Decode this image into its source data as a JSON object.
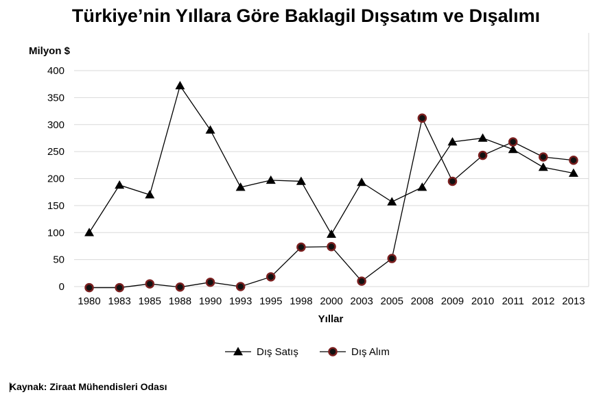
{
  "chart_data": {
    "type": "line",
    "title": "Türkiye’nin Yıllara Göre Baklagil Dışsatım ve Dışalımı",
    "ylabel": "Milyon $",
    "xlabel": "Yıllar",
    "ylim": [
      0,
      400
    ],
    "yticks": [
      0,
      50,
      100,
      150,
      200,
      250,
      300,
      350,
      400
    ],
    "categories": [
      "1980",
      "1983",
      "1985",
      "1988",
      "1990",
      "1993",
      "1995",
      "1998",
      "2000",
      "2003",
      "2005",
      "2008",
      "2009",
      "2010",
      "2011",
      "2012",
      "2013"
    ],
    "series": [
      {
        "name": "Dış Satış",
        "marker": "triangle",
        "color": "#000000",
        "values": [
          100,
          188,
          170,
          372,
          290,
          184,
          197,
          195,
          97,
          193,
          157,
          184,
          268,
          275,
          254,
          221,
          210
        ]
      },
      {
        "name": "Dış Alım",
        "marker": "circle",
        "color": "#7a1f1f",
        "values": [
          -2,
          -2,
          5,
          -1,
          8,
          0,
          18,
          73,
          74,
          10,
          52,
          312,
          195,
          243,
          268,
          240,
          234
        ]
      }
    ],
    "grid": true,
    "legend": "bottom"
  },
  "source": {
    "text": "Kaynak: Ziraat Mühendisleri Odası"
  }
}
